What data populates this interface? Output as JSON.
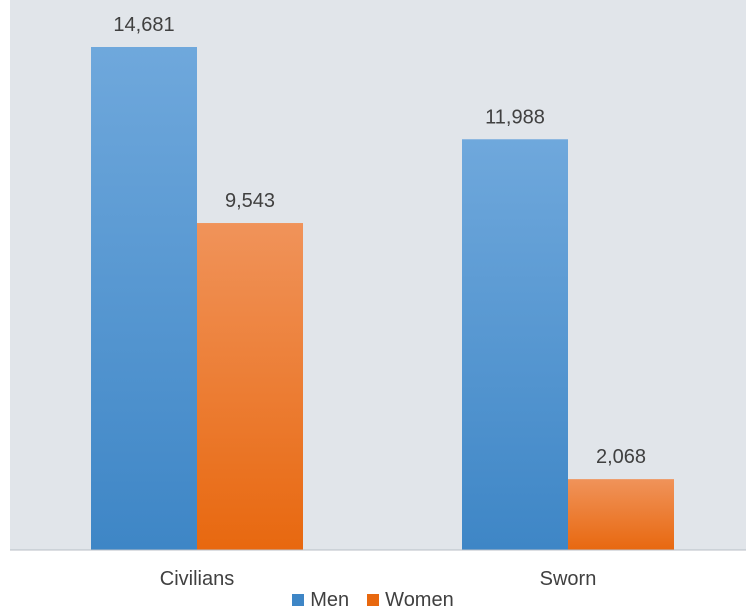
{
  "chart_data": {
    "type": "bar",
    "categories": [
      "Civilians",
      "Sworn"
    ],
    "series": [
      {
        "name": "Men",
        "values": [
          14681,
          11988
        ],
        "labels": [
          "14,681",
          "11,988"
        ],
        "color_top": "#6fa8dc",
        "color_bottom": "#3e86c6"
      },
      {
        "name": "Women",
        "values": [
          9543,
          2068
        ],
        "labels": [
          "9,543",
          "2,068"
        ],
        "color_top": "#f0935a",
        "color_bottom": "#e8680f"
      }
    ],
    "ylim": [
      0,
      15000
    ],
    "grid": false,
    "legend_position": "bottom",
    "plot_background": "#e1e5ea",
    "axis_line_color": "#b8bec6",
    "text_color": "#404040"
  }
}
